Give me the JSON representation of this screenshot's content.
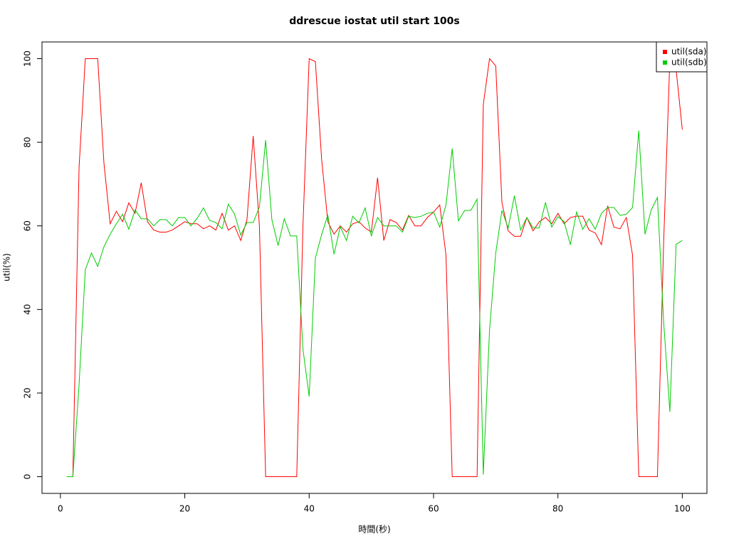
{
  "chart_data": {
    "type": "line",
    "title": "ddrescue iostat util start 100s",
    "x_label": "時間(秒)",
    "y_label": "util(%)",
    "x": [
      1,
      2,
      3,
      4,
      5,
      6,
      7,
      8,
      9,
      10,
      11,
      12,
      13,
      14,
      15,
      16,
      17,
      18,
      19,
      20,
      21,
      22,
      23,
      24,
      25,
      26,
      27,
      28,
      29,
      30,
      31,
      32,
      33,
      34,
      35,
      36,
      37,
      38,
      39,
      40,
      41,
      42,
      43,
      44,
      45,
      46,
      47,
      48,
      49,
      50,
      51,
      52,
      53,
      54,
      55,
      56,
      57,
      58,
      59,
      60,
      61,
      62,
      63,
      64,
      65,
      66,
      67,
      68,
      69,
      70,
      71,
      72,
      73,
      74,
      75,
      76,
      77,
      78,
      79,
      80,
      81,
      82,
      83,
      84,
      85,
      86,
      87,
      88,
      89,
      90,
      91,
      92,
      93,
      94,
      95,
      96,
      97,
      98,
      99,
      100
    ],
    "series": [
      {
        "name": "util(sda)",
        "color": "#ff0000",
        "values": [
          0,
          0,
          74,
          100,
          100,
          100,
          75,
          60.5,
          63.5,
          61,
          65.5,
          63,
          70.3,
          61,
          59,
          58.5,
          58.5,
          59,
          60,
          61,
          60.5,
          60.5,
          59.3,
          60,
          59,
          63,
          59,
          60,
          56.5,
          61.5,
          81.5,
          60,
          0,
          0,
          0,
          0,
          0,
          0,
          60,
          100,
          99.3,
          76,
          61,
          58,
          60,
          58.5,
          60.5,
          61,
          59.5,
          58.5,
          71.5,
          56.5,
          61.5,
          60.8,
          59,
          62.5,
          60,
          60,
          62,
          63.3,
          65,
          53,
          0,
          0,
          0,
          0,
          0,
          89,
          100,
          98.3,
          65.5,
          58.8,
          57.5,
          57.5,
          62,
          58.8,
          61,
          62,
          60.5,
          63,
          60.5,
          62,
          62.3,
          62.3,
          59,
          58.3,
          55.5,
          64.8,
          59.7,
          59.3,
          62,
          53,
          0,
          0,
          0,
          0,
          56,
          100,
          97.5,
          83
        ]
      },
      {
        "name": "util(sdb)",
        "color": "#00cd00",
        "values": [
          0,
          0,
          22,
          49.5,
          53.5,
          50.3,
          55,
          58,
          60.5,
          62.8,
          59.2,
          63.8,
          61.7,
          61.7,
          60,
          61.5,
          61.5,
          60,
          62,
          62,
          60,
          61.8,
          64.3,
          61.3,
          60.8,
          59.3,
          65.2,
          62.8,
          57.8,
          60.8,
          60.8,
          64.5,
          80.5,
          61.5,
          55.3,
          61.7,
          57.6,
          57.6,
          30.5,
          19.2,
          52.3,
          57.9,
          62.6,
          53.2,
          59.8,
          56.5,
          62.3,
          60.7,
          64.3,
          57.6,
          62,
          60,
          60,
          60,
          58.5,
          62.3,
          62,
          62.3,
          63,
          63.3,
          59.7,
          65,
          78.5,
          61.2,
          63.7,
          63.7,
          66.4,
          0.5,
          35,
          53.5,
          63.7,
          59.5,
          67.2,
          59,
          62,
          59.5,
          59.5,
          65.6,
          59.7,
          62.2,
          61,
          55.5,
          63.3,
          59.2,
          61.7,
          59.2,
          63,
          64.4,
          64.4,
          62.5,
          62.8,
          64.4,
          82.8,
          58,
          63.8,
          66.8,
          37,
          15.5,
          55.6,
          56.5
        ]
      }
    ],
    "xlim": [
      -2.96,
      103.96
    ],
    "xticks": [
      0,
      20,
      40,
      60,
      80,
      100
    ],
    "ylim": [
      -4,
      104
    ],
    "yticks": [
      0,
      20,
      40,
      60,
      80,
      100
    ],
    "legend": "topright"
  }
}
